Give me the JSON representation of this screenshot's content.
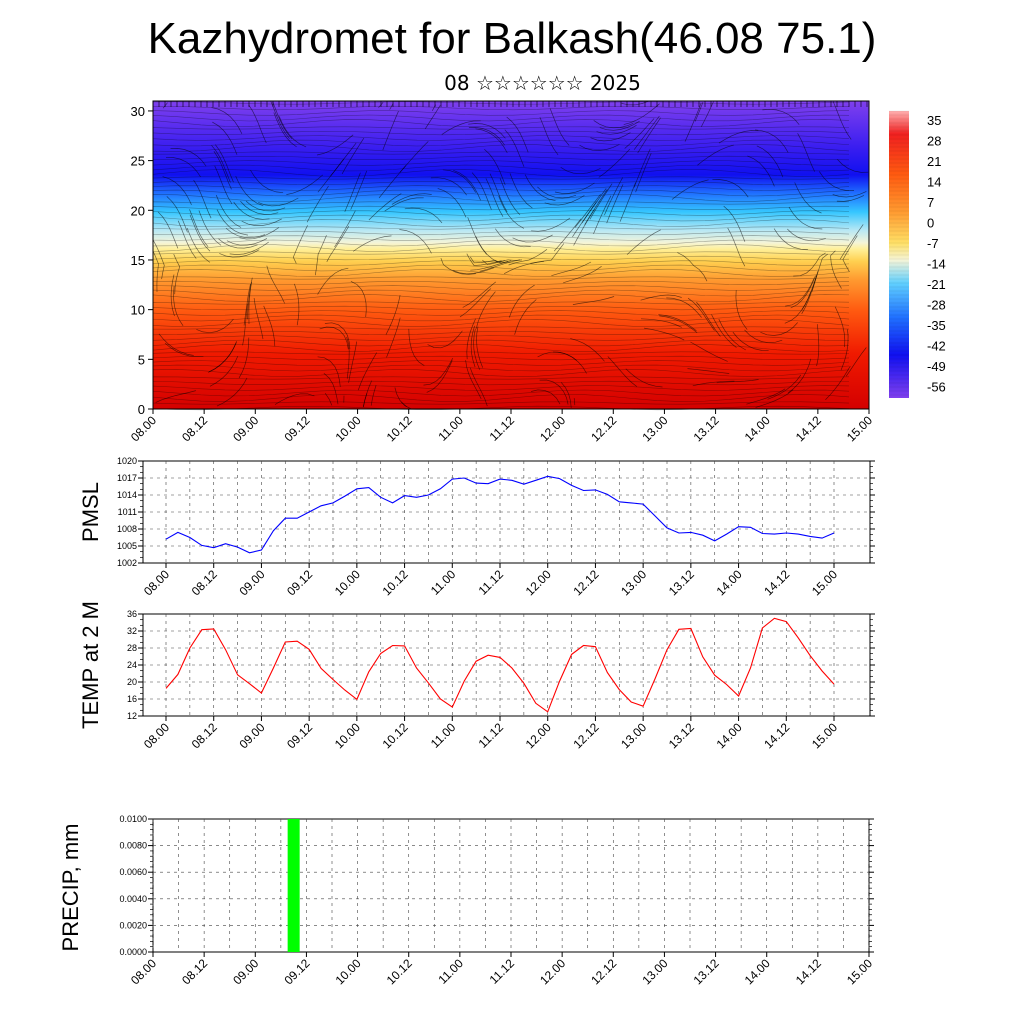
{
  "title": "Kazhydromet for Balkash(46.08 75.1)",
  "subtitle": "08 ☆☆☆☆☆☆ 2025",
  "time_ticks": [
    "08.00",
    "08.12",
    "09.00",
    "09.12",
    "10.00",
    "10.12",
    "11.00",
    "11.12",
    "12.00",
    "12.12",
    "13.00",
    "13.12",
    "14.00",
    "14.12",
    "15.00"
  ],
  "chart_data": [
    {
      "type": "heatmap",
      "panel": "cross-section",
      "y_ticks": [
        "0",
        "5",
        "10",
        "15",
        "20",
        "25",
        "30"
      ],
      "ylim": [
        0,
        31
      ],
      "colorbar_labels": [
        "35",
        "28",
        "21",
        "14",
        "7",
        "0",
        "-7",
        "-14",
        "-21",
        "-28",
        "-35",
        "-42",
        "-49",
        "-56"
      ],
      "colorbar_range": [
        -60,
        38
      ],
      "colors": {
        "warm": "#e00000",
        "orange": "#ff8c1a",
        "yellow": "#ffe066",
        "pale": "#f0f0c0",
        "cyan": "#33ccff",
        "blue": "#1010f0",
        "violet": "#7a3cf0"
      }
    },
    {
      "type": "line",
      "panel": "pmsl",
      "ylabel": "PMSL",
      "y_ticks": [
        "1002",
        "1005",
        "1008",
        "1011",
        "1014",
        "1017",
        "1020"
      ],
      "ylim": [
        1002,
        1020
      ],
      "color": "#0000ff",
      "x_hours": [
        0,
        3,
        6,
        9,
        12,
        15,
        18,
        21,
        24,
        27,
        30,
        33,
        36,
        39,
        42,
        45,
        48,
        51,
        54,
        57,
        60,
        63,
        66,
        69,
        72,
        75,
        78,
        81,
        84,
        87,
        90,
        93,
        96,
        99,
        102,
        105,
        108,
        111,
        114,
        117,
        120,
        123,
        126,
        129,
        132,
        135,
        138,
        141,
        144,
        147,
        150,
        153,
        156,
        159,
        162,
        165,
        168
      ],
      "values": [
        1006.2,
        1007.4,
        1006.5,
        1005.1,
        1004.7,
        1005.4,
        1004.8,
        1003.8,
        1004.3,
        1007.7,
        1009.9,
        1009.9,
        1011.0,
        1012.1,
        1012.6,
        1013.8,
        1015.1,
        1015.3,
        1013.6,
        1012.6,
        1013.9,
        1013.6,
        1014.0,
        1015.1,
        1016.8,
        1017.0,
        1016.1,
        1016.0,
        1016.8,
        1016.6,
        1015.9,
        1016.6,
        1017.3,
        1016.9,
        1015.7,
        1014.8,
        1014.9,
        1014.1,
        1012.8,
        1012.6,
        1012.4,
        1010.3,
        1008.2,
        1007.3,
        1007.4,
        1006.9,
        1005.9,
        1007.1,
        1008.4,
        1008.3,
        1007.2,
        1007.1,
        1007.3,
        1007.1,
        1006.7,
        1006.4,
        1007.3
      ]
    },
    {
      "type": "line",
      "panel": "temp2m",
      "ylabel": "TEMP at 2 M",
      "y_ticks": [
        "12",
        "16",
        "20",
        "24",
        "28",
        "32",
        "36"
      ],
      "ylim": [
        12,
        36
      ],
      "color": "#ff0000",
      "x_hours": [
        0,
        3,
        6,
        9,
        12,
        15,
        18,
        21,
        24,
        27,
        30,
        33,
        36,
        39,
        42,
        45,
        48,
        51,
        54,
        57,
        60,
        63,
        66,
        69,
        72,
        75,
        78,
        81,
        84,
        87,
        90,
        93,
        96,
        99,
        102,
        105,
        108,
        111,
        114,
        117,
        120,
        123,
        126,
        129,
        132,
        135,
        138,
        141,
        144,
        147,
        150,
        153,
        156,
        159,
        162,
        165,
        168
      ],
      "values": [
        18.5,
        21.8,
        28,
        32.3,
        32.5,
        27.6,
        21.7,
        19.6,
        17.4,
        23.3,
        29.4,
        29.6,
        27.7,
        23.2,
        20.6,
        18.1,
        15.9,
        22.4,
        26.7,
        28.6,
        28.5,
        23.3,
        19.8,
        16.0,
        14.1,
        20.2,
        24.9,
        26.3,
        25.8,
        23.3,
        19.7,
        15.0,
        13.0,
        20.2,
        26.5,
        28.6,
        28.3,
        22.2,
        18.2,
        15.3,
        14.3,
        20.8,
        27.6,
        32.4,
        32.6,
        25.9,
        21.6,
        19.4,
        16.7,
        23.3,
        32.7,
        35,
        34.2,
        30.4,
        26.2,
        22.6,
        19.5
      ]
    },
    {
      "type": "bar",
      "panel": "precip",
      "ylabel": "PRECIP, mm",
      "y_ticks": [
        "0.0000",
        "0.0020",
        "0.0040",
        "0.0060",
        "0.0080",
        "0.0100"
      ],
      "ylim": [
        0,
        0.01
      ],
      "color": "#00ff00",
      "bars": [
        {
          "x_hours": 33,
          "value": 0.01
        }
      ]
    }
  ]
}
